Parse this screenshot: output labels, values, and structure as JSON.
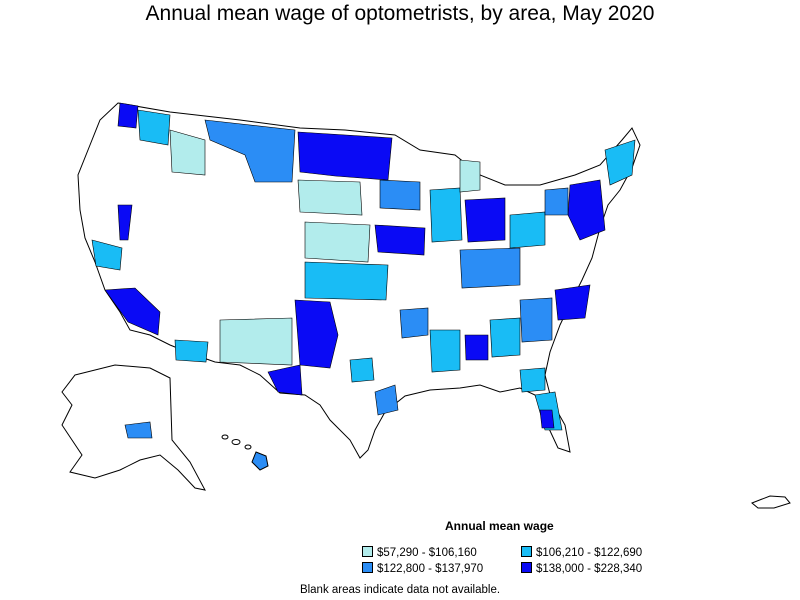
{
  "title": "Annual mean wage of optometrists, by area, May 2020",
  "legend": {
    "title": "Annual mean wage",
    "items": [
      {
        "label": "$57,290 - $106,160",
        "color": "#b2ecec"
      },
      {
        "label": "$106,210 - $122,690",
        "color": "#19bcf5"
      },
      {
        "label": "$122,800 - $137,970",
        "color": "#2b8df5"
      },
      {
        "label": "$138,000 - $228,340",
        "color": "#0a0af5"
      }
    ]
  },
  "footnote": "Blank areas indicate data not available."
}
